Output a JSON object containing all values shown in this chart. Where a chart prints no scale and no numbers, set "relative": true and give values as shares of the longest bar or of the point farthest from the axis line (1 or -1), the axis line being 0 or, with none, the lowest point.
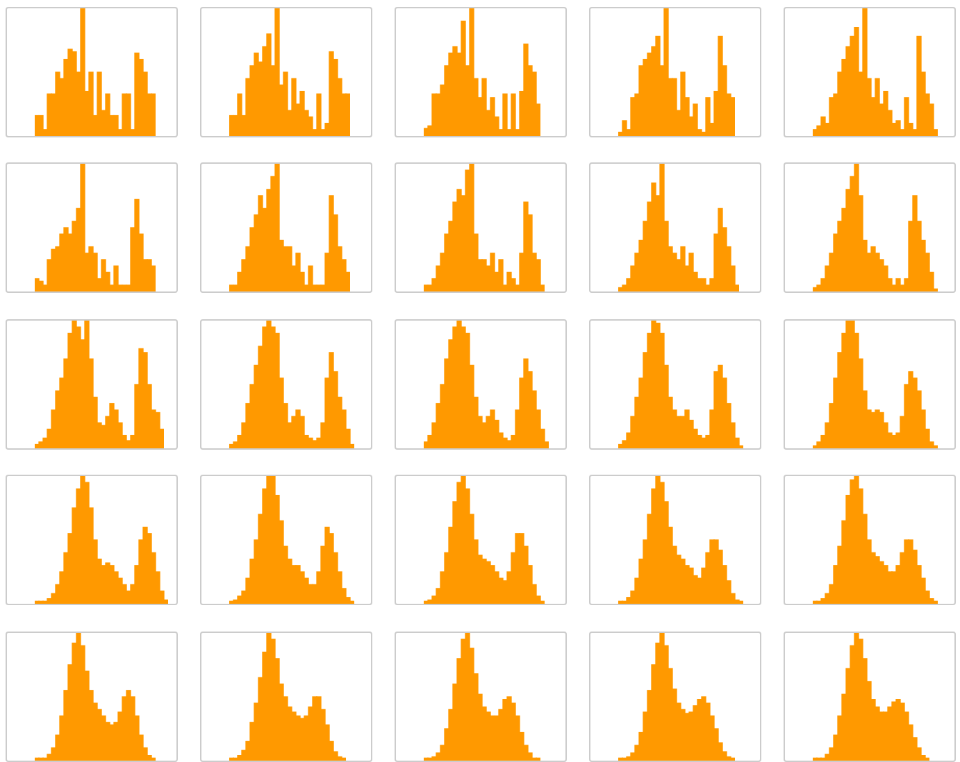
{
  "chart_data": [
    {
      "type": "bar",
      "relative": true,
      "color": "#ff9900",
      "categories": [
        null,
        null,
        null,
        null,
        null,
        null,
        null,
        null,
        null,
        null,
        null,
        null,
        null,
        null,
        null,
        null,
        null,
        null,
        null,
        null,
        null,
        null,
        null,
        null,
        null,
        null,
        null,
        null,
        null
      ],
      "values": [
        0.16,
        0.16,
        0.05,
        0.33,
        0.33,
        0.5,
        0.45,
        0.6,
        0.68,
        0.66,
        0.5,
        1,
        0.35,
        0.5,
        0.16,
        0.5,
        0.2,
        0.33,
        0.16,
        0.16,
        0.05,
        0.33,
        0.33,
        0.05,
        0.65,
        0.6,
        0.5,
        0.33,
        0.33
      ]
    },
    {
      "type": "bar",
      "relative": true,
      "color": "#ff9900",
      "categories": [
        null,
        null,
        null,
        null,
        null,
        null,
        null,
        null,
        null,
        null,
        null,
        null,
        null,
        null,
        null,
        null,
        null,
        null,
        null,
        null,
        null,
        null,
        null,
        null,
        null,
        null,
        null,
        null,
        null
      ],
      "values": [
        0.16,
        0.16,
        0.33,
        0.16,
        0.45,
        0.55,
        0.65,
        0.58,
        0.7,
        0.8,
        0.55,
        1,
        0.4,
        0.5,
        0.2,
        0.45,
        0.25,
        0.35,
        0.2,
        0.15,
        0.05,
        0.33,
        0.05,
        0.1,
        0.66,
        0.6,
        0.45,
        0.33,
        0.33
      ]
    },
    {
      "type": "bar",
      "relative": true,
      "color": "#ff9900",
      "categories": [
        null,
        null,
        null,
        null,
        null,
        null,
        null,
        null,
        null,
        null,
        null,
        null,
        null,
        null,
        null,
        null,
        null,
        null,
        null,
        null,
        null,
        null,
        null,
        null,
        null,
        null,
        null,
        null
      ],
      "values": [
        0.06,
        0.08,
        0.33,
        0.33,
        0.4,
        0.55,
        0.65,
        0.7,
        0.65,
        0.9,
        0.55,
        1,
        0.45,
        0.3,
        0.45,
        0.2,
        0.3,
        0.15,
        0.05,
        0.33,
        0.05,
        0.33,
        0.05,
        0.35,
        0.72,
        0.55,
        0.5,
        0.25
      ]
    },
    {
      "type": "bar",
      "relative": true,
      "color": "#ff9900",
      "categories": [
        null,
        null,
        null,
        null,
        null,
        null,
        null,
        null,
        null,
        null,
        null,
        null,
        null,
        null,
        null,
        null,
        null,
        null,
        null,
        null,
        null,
        null,
        null,
        null,
        null,
        null,
        null,
        null
      ],
      "values": [
        0.03,
        0.12,
        0.05,
        0.3,
        0.33,
        0.55,
        0.6,
        0.65,
        0.7,
        0.78,
        0.55,
        1,
        0.45,
        0.45,
        0.2,
        0.5,
        0.3,
        0.15,
        0.25,
        0.05,
        0.03,
        0.3,
        0.1,
        0.35,
        0.78,
        0.55,
        0.33,
        0.3
      ]
    },
    {
      "type": "bar",
      "relative": true,
      "color": "#ff9900",
      "categories": [
        null,
        null,
        null,
        null,
        null,
        null,
        null,
        null,
        null,
        null,
        null,
        null,
        null,
        null,
        null,
        null,
        null,
        null,
        null,
        null,
        null,
        null,
        null,
        null,
        null,
        null,
        null,
        null,
        null,
        null
      ],
      "values": [
        0.05,
        0.08,
        0.15,
        0.1,
        0.3,
        0.33,
        0.5,
        0.6,
        0.7,
        0.78,
        0.85,
        0.5,
        1,
        0.45,
        0.3,
        0.45,
        0.25,
        0.35,
        0.2,
        0.1,
        0.12,
        0.05,
        0.3,
        0.1,
        0.05,
        0.78,
        0.5,
        0.33,
        0.25,
        0.05
      ]
    },
    {
      "type": "bar",
      "relative": true,
      "color": "#ff9900",
      "categories": [
        null,
        null,
        null,
        null,
        null,
        null,
        null,
        null,
        null,
        null,
        null,
        null,
        null,
        null,
        null,
        null,
        null,
        null,
        null,
        null,
        null,
        null,
        null,
        null,
        null,
        null,
        null,
        null,
        null
      ],
      "values": [
        0.1,
        0.08,
        0.05,
        0.25,
        0.33,
        0.35,
        0.45,
        0.5,
        0.45,
        0.55,
        0.65,
        1,
        0.3,
        0.35,
        0.3,
        0.1,
        0.25,
        0.15,
        0.05,
        0.2,
        0.05,
        0.05,
        0.05,
        0.5,
        0.72,
        0.45,
        0.25,
        0.25,
        0.2
      ]
    },
    {
      "type": "bar",
      "relative": true,
      "color": "#ff9900",
      "categories": [
        null,
        null,
        null,
        null,
        null,
        null,
        null,
        null,
        null,
        null,
        null,
        null,
        null,
        null,
        null,
        null,
        null,
        null,
        null,
        null,
        null,
        null,
        null,
        null,
        null,
        null,
        null,
        null,
        null
      ],
      "values": [
        0.05,
        0.05,
        0.15,
        0.25,
        0.35,
        0.5,
        0.6,
        0.75,
        0.65,
        0.8,
        0.9,
        1,
        0.4,
        0.35,
        0.35,
        0.2,
        0.3,
        0.15,
        0.05,
        0.2,
        0.05,
        0.05,
        0.05,
        0.3,
        0.75,
        0.6,
        0.35,
        0.25,
        0.15
      ]
    },
    {
      "type": "bar",
      "relative": true,
      "color": "#ff9900",
      "categories": [
        null,
        null,
        null,
        null,
        null,
        null,
        null,
        null,
        null,
        null,
        null,
        null,
        null,
        null,
        null,
        null,
        null,
        null,
        null,
        null,
        null,
        null,
        null,
        null,
        null,
        null,
        null,
        null,
        null
      ],
      "values": [
        0.05,
        0.05,
        0.1,
        0.2,
        0.3,
        0.45,
        0.55,
        0.7,
        0.8,
        0.75,
        0.95,
        1,
        0.45,
        0.25,
        0.25,
        0.2,
        0.3,
        0.15,
        0.25,
        0.05,
        0.15,
        0.1,
        0.05,
        0.3,
        0.7,
        0.6,
        0.3,
        0.25,
        0.05
      ]
    },
    {
      "type": "bar",
      "relative": true,
      "color": "#ff9900",
      "categories": [
        null,
        null,
        null,
        null,
        null,
        null,
        null,
        null,
        null,
        null,
        null,
        null,
        null,
        null,
        null,
        null,
        null,
        null,
        null,
        null,
        null,
        null,
        null,
        null,
        null,
        null,
        null,
        null,
        null
      ],
      "values": [
        0.03,
        0.05,
        0.1,
        0.2,
        0.3,
        0.4,
        0.55,
        0.7,
        0.85,
        0.75,
        1,
        0.55,
        0.35,
        0.3,
        0.25,
        0.35,
        0.2,
        0.3,
        0.15,
        0.1,
        0.1,
        0.05,
        0.1,
        0.45,
        0.65,
        0.5,
        0.35,
        0.2,
        0.05
      ]
    },
    {
      "type": "bar",
      "relative": true,
      "color": "#ff9900",
      "categories": [
        null,
        null,
        null,
        null,
        null,
        null,
        null,
        null,
        null,
        null,
        null,
        null,
        null,
        null,
        null,
        null,
        null,
        null,
        null,
        null,
        null,
        null,
        null,
        null,
        null,
        null,
        null,
        null,
        null,
        null
      ],
      "values": [
        0.03,
        0.05,
        0.1,
        0.2,
        0.3,
        0.45,
        0.55,
        0.65,
        0.8,
        0.9,
        1,
        0.75,
        0.4,
        0.3,
        0.35,
        0.3,
        0.25,
        0.2,
        0.1,
        0.05,
        0.1,
        0.05,
        0.1,
        0.55,
        0.75,
        0.55,
        0.4,
        0.3,
        0.15,
        0.02
      ]
    },
    {
      "type": "bar",
      "relative": true,
      "color": "#ff9900",
      "categories": [
        null,
        null,
        null,
        null,
        null,
        null,
        null,
        null,
        null,
        null,
        null,
        null,
        null,
        null,
        null,
        null,
        null,
        null,
        null,
        null,
        null,
        null,
        null,
        null,
        null,
        null,
        null,
        null,
        null,
        null,
        null
      ],
      "values": [
        0.03,
        0.05,
        0.08,
        0.15,
        0.3,
        0.45,
        0.55,
        0.7,
        0.9,
        1,
        0.95,
        0.85,
        1,
        0.7,
        0.4,
        0.2,
        0.18,
        0.25,
        0.35,
        0.3,
        0.2,
        0.1,
        0.06,
        0.1,
        0.5,
        0.78,
        0.75,
        0.5,
        0.3,
        0.28,
        0.15
      ]
    },
    {
      "type": "bar",
      "relative": true,
      "color": "#ff9900",
      "categories": [
        null,
        null,
        null,
        null,
        null,
        null,
        null,
        null,
        null,
        null,
        null,
        null,
        null,
        null,
        null,
        null,
        null,
        null,
        null,
        null,
        null,
        null,
        null,
        null,
        null,
        null,
        null,
        null,
        null,
        null
      ],
      "values": [
        0.03,
        0.05,
        0.1,
        0.2,
        0.35,
        0.5,
        0.65,
        0.8,
        0.95,
        1,
        0.95,
        0.9,
        0.55,
        0.35,
        0.2,
        0.25,
        0.3,
        0.25,
        0.1,
        0.08,
        0.06,
        0.08,
        0.2,
        0.55,
        0.75,
        0.6,
        0.4,
        0.3,
        0.15,
        0.03
      ]
    },
    {
      "type": "bar",
      "relative": true,
      "color": "#ff9900",
      "categories": [
        null,
        null,
        null,
        null,
        null,
        null,
        null,
        null,
        null,
        null,
        null,
        null,
        null,
        null,
        null,
        null,
        null,
        null,
        null,
        null,
        null,
        null,
        null,
        null,
        null,
        null,
        null,
        null,
        null,
        null
      ],
      "values": [
        0.05,
        0.1,
        0.2,
        0.35,
        0.5,
        0.7,
        0.85,
        0.95,
        1,
        0.95,
        0.9,
        0.65,
        0.4,
        0.25,
        0.2,
        0.25,
        0.3,
        0.22,
        0.12,
        0.08,
        0.06,
        0.1,
        0.3,
        0.55,
        0.7,
        0.6,
        0.45,
        0.3,
        0.15,
        0.05
      ]
    },
    {
      "type": "bar",
      "relative": true,
      "color": "#ff9900",
      "categories": [
        null,
        null,
        null,
        null,
        null,
        null,
        null,
        null,
        null,
        null,
        null,
        null,
        null,
        null,
        null,
        null,
        null,
        null,
        null,
        null,
        null,
        null,
        null,
        null,
        null,
        null,
        null,
        null,
        null,
        null
      ],
      "values": [
        0.03,
        0.06,
        0.12,
        0.25,
        0.4,
        0.55,
        0.75,
        0.9,
        1,
        0.98,
        0.9,
        0.65,
        0.4,
        0.3,
        0.25,
        0.25,
        0.3,
        0.22,
        0.15,
        0.1,
        0.08,
        0.1,
        0.3,
        0.6,
        0.65,
        0.55,
        0.35,
        0.2,
        0.08,
        0.02
      ]
    },
    {
      "type": "bar",
      "relative": true,
      "color": "#ff9900",
      "categories": [
        null,
        null,
        null,
        null,
        null,
        null,
        null,
        null,
        null,
        null,
        null,
        null,
        null,
        null,
        null,
        null,
        null,
        null,
        null,
        null,
        null,
        null,
        null,
        null,
        null,
        null,
        null,
        null,
        null,
        null
      ],
      "values": [
        0.02,
        0.05,
        0.1,
        0.2,
        0.35,
        0.55,
        0.75,
        0.9,
        1,
        1,
        0.9,
        0.7,
        0.45,
        0.3,
        0.28,
        0.3,
        0.28,
        0.2,
        0.12,
        0.1,
        0.12,
        0.25,
        0.5,
        0.6,
        0.55,
        0.45,
        0.3,
        0.15,
        0.05,
        0.02
      ]
    },
    {
      "type": "bar",
      "relative": true,
      "color": "#ff9900",
      "categories": [
        null,
        null,
        null,
        null,
        null,
        null,
        null,
        null,
        null,
        null,
        null,
        null,
        null,
        null,
        null,
        null,
        null,
        null,
        null,
        null,
        null,
        null,
        null,
        null,
        null,
        null,
        null,
        null,
        null,
        null,
        null,
        null
      ],
      "values": [
        0.02,
        0.02,
        0.02,
        0.04,
        0.08,
        0.15,
        0.25,
        0.4,
        0.55,
        0.75,
        0.9,
        1,
        0.95,
        0.75,
        0.5,
        0.35,
        0.3,
        0.32,
        0.3,
        0.25,
        0.2,
        0.15,
        0.1,
        0.15,
        0.3,
        0.5,
        0.6,
        0.55,
        0.4,
        0.25,
        0.1,
        0.03
      ]
    },
    {
      "type": "bar",
      "relative": true,
      "color": "#ff9900",
      "categories": [
        null,
        null,
        null,
        null,
        null,
        null,
        null,
        null,
        null,
        null,
        null,
        null,
        null,
        null,
        null,
        null,
        null,
        null,
        null,
        null,
        null,
        null,
        null,
        null,
        null,
        null,
        null,
        null,
        null,
        null
      ],
      "values": [
        0.02,
        0.03,
        0.06,
        0.1,
        0.2,
        0.35,
        0.5,
        0.7,
        0.9,
        1,
        1,
        0.85,
        0.65,
        0.45,
        0.35,
        0.3,
        0.3,
        0.25,
        0.2,
        0.15,
        0.15,
        0.25,
        0.45,
        0.6,
        0.55,
        0.4,
        0.25,
        0.12,
        0.05,
        0.02
      ]
    },
    {
      "type": "bar",
      "relative": true,
      "color": "#ff9900",
      "categories": [
        null,
        null,
        null,
        null,
        null,
        null,
        null,
        null,
        null,
        null,
        null,
        null,
        null,
        null,
        null,
        null,
        null,
        null,
        null,
        null,
        null,
        null,
        null,
        null,
        null,
        null,
        null,
        null,
        null
      ],
      "values": [
        0.02,
        0.03,
        0.06,
        0.12,
        0.25,
        0.4,
        0.6,
        0.8,
        0.95,
        1,
        0.9,
        0.7,
        0.5,
        0.38,
        0.35,
        0.33,
        0.3,
        0.25,
        0.2,
        0.18,
        0.25,
        0.4,
        0.55,
        0.55,
        0.45,
        0.3,
        0.15,
        0.06,
        0.02
      ]
    },
    {
      "type": "bar",
      "relative": true,
      "color": "#ff9900",
      "categories": [
        null,
        null,
        null,
        null,
        null,
        null,
        null,
        null,
        null,
        null,
        null,
        null,
        null,
        null,
        null,
        null,
        null,
        null,
        null,
        null,
        null,
        null,
        null,
        null,
        null,
        null,
        null,
        null,
        null,
        null
      ],
      "values": [
        0.02,
        0.02,
        0.05,
        0.1,
        0.2,
        0.35,
        0.5,
        0.7,
        0.9,
        1,
        0.95,
        0.8,
        0.6,
        0.45,
        0.38,
        0.35,
        0.3,
        0.28,
        0.22,
        0.2,
        0.28,
        0.4,
        0.5,
        0.5,
        0.42,
        0.3,
        0.18,
        0.08,
        0.03,
        0.02
      ]
    },
    {
      "type": "bar",
      "relative": true,
      "color": "#ff9900",
      "categories": [
        null,
        null,
        null,
        null,
        null,
        null,
        null,
        null,
        null,
        null,
        null,
        null,
        null,
        null,
        null,
        null,
        null,
        null,
        null,
        null,
        null,
        null,
        null,
        null,
        null,
        null,
        null,
        null,
        null,
        null
      ],
      "values": [
        0.02,
        0.02,
        0.04,
        0.08,
        0.15,
        0.3,
        0.45,
        0.65,
        0.85,
        0.97,
        1,
        0.9,
        0.7,
        0.5,
        0.4,
        0.37,
        0.33,
        0.3,
        0.25,
        0.25,
        0.3,
        0.4,
        0.5,
        0.5,
        0.42,
        0.3,
        0.2,
        0.1,
        0.04,
        0.02
      ]
    },
    {
      "type": "bar",
      "relative": true,
      "color": "#ff9900",
      "categories": [
        null,
        null,
        null,
        null,
        null,
        null,
        null,
        null,
        null,
        null,
        null,
        null,
        null,
        null,
        null,
        null,
        null,
        null,
        null,
        null,
        null,
        null,
        null,
        null,
        null,
        null,
        null,
        null,
        null
      ],
      "values": [
        0.02,
        0.02,
        0.02,
        0.05,
        0.1,
        0.2,
        0.35,
        0.55,
        0.75,
        0.92,
        1,
        0.9,
        0.7,
        0.55,
        0.45,
        0.4,
        0.35,
        0.3,
        0.28,
        0.3,
        0.38,
        0.5,
        0.55,
        0.5,
        0.35,
        0.2,
        0.1,
        0.04,
        0.02
      ]
    },
    {
      "type": "bar",
      "relative": true,
      "color": "#ff9900",
      "categories": [
        null,
        null,
        null,
        null,
        null,
        null,
        null,
        null,
        null,
        null,
        null,
        null,
        null,
        null,
        null,
        null,
        null,
        null,
        null,
        null,
        null,
        null,
        null,
        null,
        null,
        null,
        null,
        null
      ],
      "values": [
        0.02,
        0.02,
        0.04,
        0.08,
        0.15,
        0.3,
        0.45,
        0.65,
        0.85,
        1,
        0.95,
        0.8,
        0.6,
        0.5,
        0.42,
        0.38,
        0.35,
        0.33,
        0.35,
        0.42,
        0.5,
        0.5,
        0.4,
        0.28,
        0.15,
        0.07,
        0.03,
        0.02
      ]
    },
    {
      "type": "bar",
      "relative": true,
      "color": "#ff9900",
      "categories": [
        null,
        null,
        null,
        null,
        null,
        null,
        null,
        null,
        null,
        null,
        null,
        null,
        null,
        null,
        null,
        null,
        null,
        null,
        null,
        null,
        null,
        null,
        null,
        null,
        null,
        null,
        null,
        null
      ],
      "values": [
        0.02,
        0.02,
        0.03,
        0.06,
        0.12,
        0.25,
        0.4,
        0.6,
        0.8,
        0.95,
        1,
        0.88,
        0.68,
        0.52,
        0.42,
        0.38,
        0.35,
        0.35,
        0.4,
        0.48,
        0.5,
        0.45,
        0.35,
        0.22,
        0.12,
        0.06,
        0.02,
        0.02
      ]
    },
    {
      "type": "bar",
      "relative": true,
      "color": "#ff9900",
      "categories": [
        null,
        null,
        null,
        null,
        null,
        null,
        null,
        null,
        null,
        null,
        null,
        null,
        null,
        null,
        null,
        null,
        null,
        null,
        null,
        null,
        null,
        null,
        null,
        null,
        null,
        null,
        null,
        null
      ],
      "values": [
        0.02,
        0.02,
        0.03,
        0.06,
        0.12,
        0.22,
        0.38,
        0.55,
        0.75,
        0.92,
        1,
        0.9,
        0.72,
        0.56,
        0.45,
        0.4,
        0.37,
        0.38,
        0.43,
        0.48,
        0.5,
        0.45,
        0.35,
        0.25,
        0.14,
        0.07,
        0.03,
        0.02
      ]
    },
    {
      "type": "bar",
      "relative": true,
      "color": "#ff9900",
      "categories": [
        null,
        null,
        null,
        null,
        null,
        null,
        null,
        null,
        null,
        null,
        null,
        null,
        null,
        null,
        null,
        null,
        null,
        null,
        null,
        null,
        null,
        null,
        null,
        null,
        null,
        null,
        null,
        null
      ],
      "values": [
        0.02,
        0.02,
        0.02,
        0.05,
        0.1,
        0.2,
        0.35,
        0.52,
        0.72,
        0.9,
        1,
        0.95,
        0.8,
        0.62,
        0.48,
        0.42,
        0.38,
        0.38,
        0.42,
        0.46,
        0.48,
        0.45,
        0.38,
        0.28,
        0.18,
        0.1,
        0.04,
        0.02
      ]
    }
  ]
}
